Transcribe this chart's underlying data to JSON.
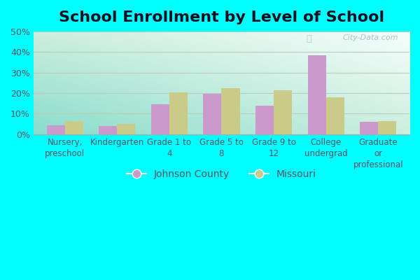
{
  "title": "School Enrollment by Level of School",
  "categories": [
    "Nursery,\npreschool",
    "Kindergarten",
    "Grade 1 to\n4",
    "Grade 5 to\n8",
    "Grade 9 to\n12",
    "College\nundergrad",
    "Graduate\nor\nprofessional"
  ],
  "johnson_county": [
    4.5,
    4.0,
    14.5,
    19.5,
    14.0,
    38.5,
    6.0
  ],
  "missouri": [
    6.5,
    5.0,
    20.5,
    22.5,
    21.5,
    18.0,
    6.5
  ],
  "johnson_color": "#cc99cc",
  "missouri_color": "#c8cc88",
  "background_outer": "#00ffff",
  "ylim": [
    0,
    50
  ],
  "yticks": [
    0,
    10,
    20,
    30,
    40,
    50
  ],
  "legend_labels": [
    "Johnson County",
    "Missouri"
  ],
  "bar_width": 0.35,
  "title_fontsize": 16,
  "tick_fontsize": 9,
  "legend_fontsize": 10,
  "grid_color": "#ccddcc",
  "watermark": "City-Data.com",
  "text_color": "#555566"
}
